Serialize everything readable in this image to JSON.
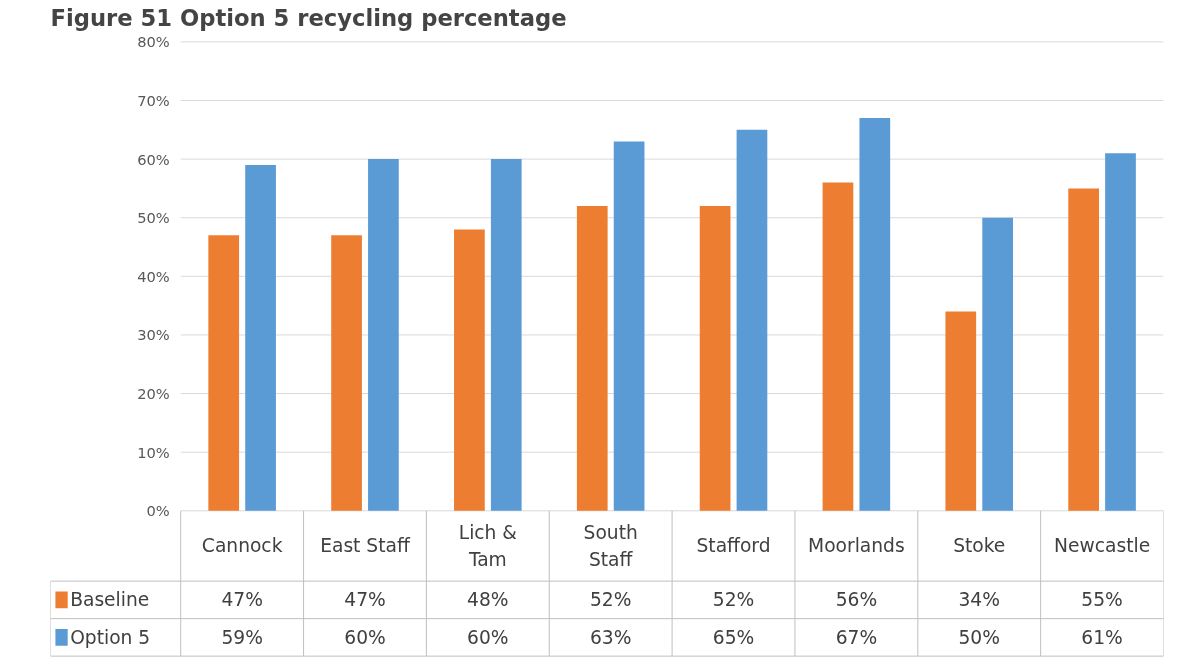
{
  "chart_data": {
    "type": "bar",
    "title": "Figure 51 Option 5 recycling percentage",
    "categories": [
      "Cannock",
      "East Staff",
      "Lich &\nTam",
      "South\nStaff",
      "Stafford",
      "Moorlands",
      "Stoke",
      "Newcastle"
    ],
    "series": [
      {
        "name": "Baseline",
        "color": "#ed7d31",
        "values": [
          47,
          47,
          48,
          52,
          52,
          56,
          34,
          55
        ],
        "value_labels": [
          "47%",
          "47%",
          "48%",
          "52%",
          "52%",
          "56%",
          "34%",
          "55%"
        ]
      },
      {
        "name": "Option 5",
        "color": "#5b9bd5",
        "values": [
          59,
          60,
          60,
          63,
          65,
          67,
          50,
          61
        ],
        "value_labels": [
          "59%",
          "60%",
          "60%",
          "63%",
          "65%",
          "67%",
          "50%",
          "61%"
        ]
      }
    ],
    "ylim": [
      0,
      80
    ],
    "yticks": [
      {
        "value": 0,
        "label": "0%"
      },
      {
        "value": 10,
        "label": "10%"
      },
      {
        "value": 20,
        "label": "20%"
      },
      {
        "value": 30,
        "label": "30%"
      },
      {
        "value": 40,
        "label": "40%"
      },
      {
        "value": 50,
        "label": "50%"
      },
      {
        "value": 60,
        "label": "60%"
      },
      {
        "value": 70,
        "label": "70%"
      },
      {
        "value": 80,
        "label": "80%"
      }
    ],
    "grid": "y",
    "legend": "bottom"
  }
}
